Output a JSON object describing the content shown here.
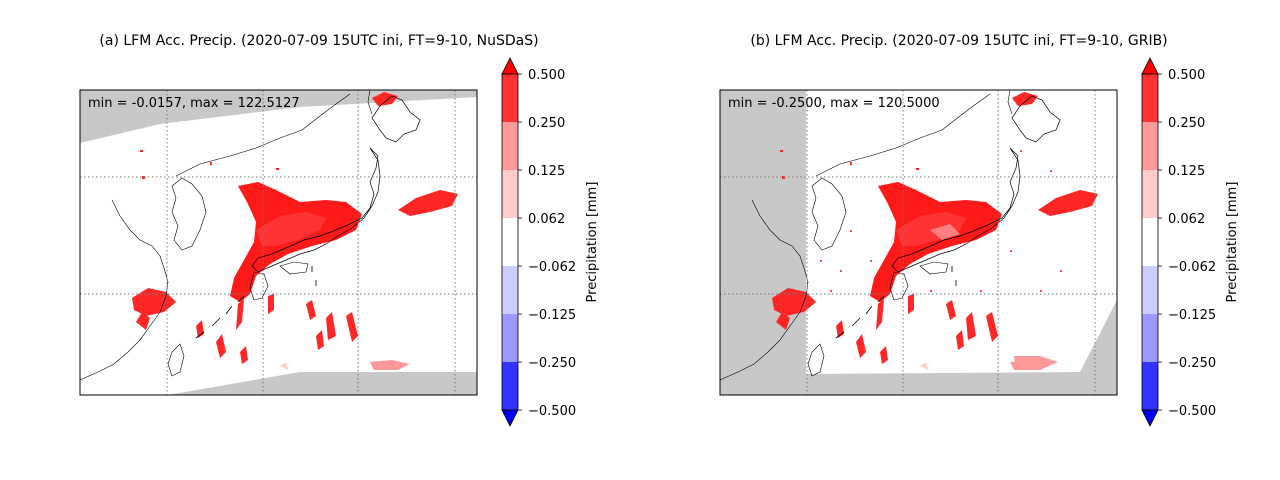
{
  "chart_data": [
    {
      "type": "heatmap",
      "panel_id": "a",
      "title": "(a) LFM Acc. Precip. (2020-07-09 15UTC ini, FT=9-10, NuSDaS)",
      "annotation": "min = -0.0157, max = 122.5127",
      "colorbar": {
        "label": "Precipitation [mm]",
        "ticks": [
          "−0.500",
          "−0.250",
          "−0.125",
          "−0.062",
          "0.062",
          "0.125",
          "0.250",
          "0.500"
        ],
        "levels": [
          -0.5,
          -0.25,
          -0.125,
          -0.062,
          0.062,
          0.125,
          0.25,
          0.5
        ],
        "colors": [
          "#3333ff",
          "#9999ff",
          "#ccccff",
          "#ffffff",
          "#ffcccc",
          "#ff9999",
          "#ff3333"
        ],
        "extend": "both",
        "under_color": "#0000ff",
        "over_color": "#ff0000"
      },
      "missing_color": "#c8c8c8",
      "gridlines": "dotted"
    },
    {
      "type": "heatmap",
      "panel_id": "b",
      "title": "(b) LFM Acc. Precip. (2020-07-09 15UTC ini, FT=9-10, GRIB)",
      "annotation": "min = -0.2500, max = 120.5000",
      "colorbar": {
        "label": "Precipitation [mm]",
        "ticks": [
          "−0.500",
          "−0.250",
          "−0.125",
          "−0.062",
          "0.062",
          "0.125",
          "0.250",
          "0.500"
        ],
        "levels": [
          -0.5,
          -0.25,
          -0.125,
          -0.062,
          0.062,
          0.125,
          0.25,
          0.5
        ],
        "colors": [
          "#3333ff",
          "#9999ff",
          "#ccccff",
          "#ffffff",
          "#ffcccc",
          "#ff9999",
          "#ff3333"
        ],
        "extend": "both",
        "under_color": "#0000ff",
        "over_color": "#ff0000"
      },
      "missing_color": "#c8c8c8",
      "gridlines": "dotted"
    }
  ]
}
